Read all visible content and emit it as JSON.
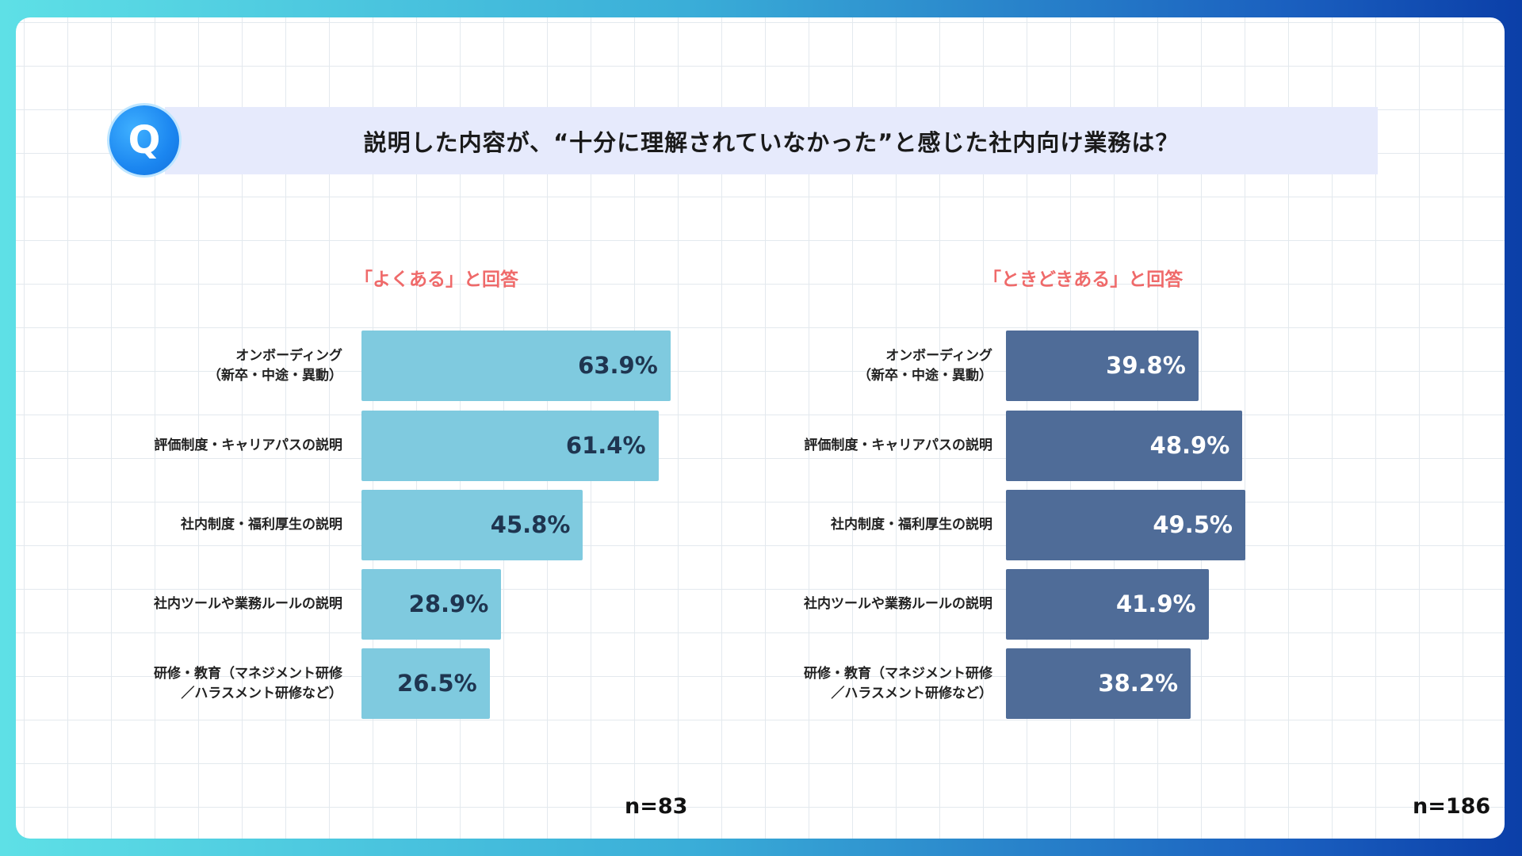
{
  "question": {
    "icon_letter": "Q",
    "title": "説明した内容が、“十分に理解されていなかった”と感じた社内向け業務は？"
  },
  "colors": {
    "left_bar": "#7fcadf",
    "right_bar": "#4f6c98",
    "subtitle": "#ef6a6a"
  },
  "chart_data": [
    {
      "type": "bar",
      "orientation": "horizontal",
      "title": "「よくある」と回答",
      "categories": [
        "オンボーディング\n（新卒・中途・異動）",
        "評価制度・キャリアパスの説明",
        "社内制度・福利厚生の説明",
        "社内ツールや業務ルールの説明",
        "研修・教育（マネジメント研修\n／ハラスメント研修など）"
      ],
      "values": [
        63.9,
        61.4,
        45.8,
        28.9,
        26.5
      ],
      "value_labels": [
        "63.9%",
        "61.4%",
        "45.8%",
        "28.9%",
        "26.5%"
      ],
      "note": "n=83"
    },
    {
      "type": "bar",
      "orientation": "horizontal",
      "title": "「ときどきある」と回答",
      "categories": [
        "オンボーディング\n（新卒・中途・異動）",
        "評価制度・キャリアパスの説明",
        "社内制度・福利厚生の説明",
        "社内ツールや業務ルールの説明",
        "研修・教育（マネジメント研修\n／ハラスメント研修など）"
      ],
      "values": [
        39.8,
        48.9,
        49.5,
        41.9,
        38.2
      ],
      "value_labels": [
        "39.8%",
        "48.9%",
        "49.5%",
        "41.9%",
        "38.2%"
      ],
      "note": "n=186"
    }
  ]
}
